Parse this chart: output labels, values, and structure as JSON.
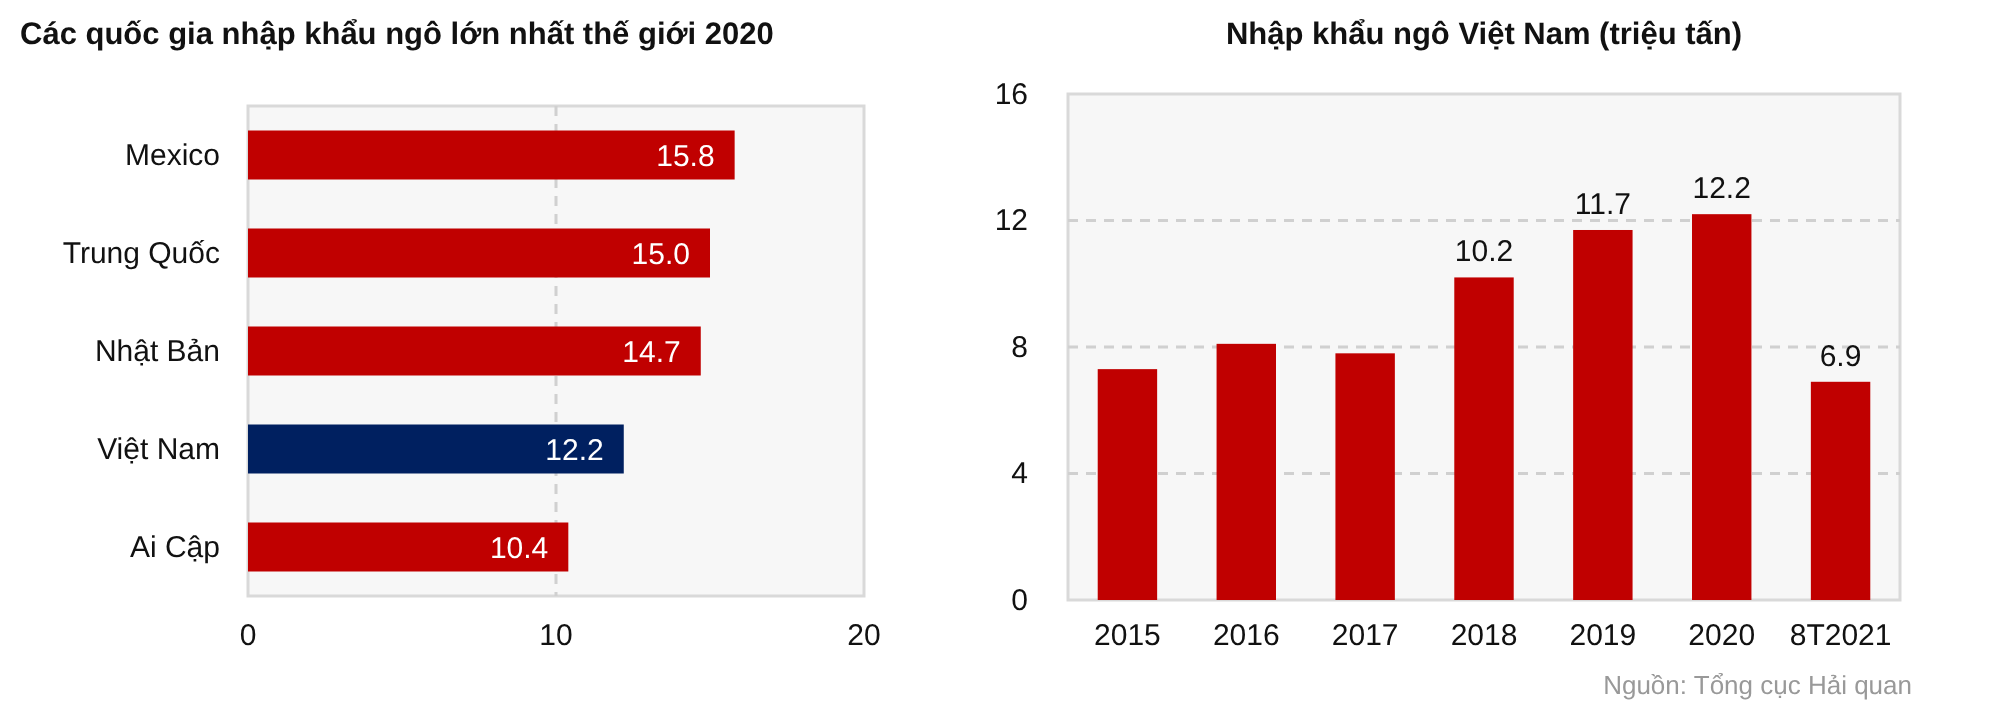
{
  "chart_data": [
    {
      "type": "bar",
      "title": "Các quốc gia nhập khẩu ngô lớn nhất thế giới 2020",
      "orientation": "horizontal",
      "categories": [
        "Mexico",
        "Trung Quốc",
        "Nhật Bản",
        "Việt Nam",
        "Ai Cập"
      ],
      "values": [
        15.8,
        15.0,
        14.7,
        12.2,
        10.4
      ],
      "colors": [
        "#c00000",
        "#c00000",
        "#c00000",
        "#002060",
        "#c00000"
      ],
      "value_labels": [
        "15.8",
        "15.0",
        "14.7",
        "12.2",
        "10.4"
      ],
      "xlim": [
        0,
        20
      ],
      "xticks": [
        0,
        10,
        20
      ],
      "grid": "x"
    },
    {
      "type": "bar",
      "title": "Nhập khẩu ngô Việt Nam (triệu tấn)",
      "categories": [
        "2015",
        "2016",
        "2017",
        "2018",
        "2019",
        "2020",
        "8T2021"
      ],
      "values": [
        7.3,
        8.1,
        7.8,
        10.2,
        11.7,
        12.2,
        6.9
      ],
      "color": "#c00000",
      "value_labels": [
        null,
        null,
        null,
        "10.2",
        "11.7",
        "12.2",
        "6.9"
      ],
      "ylim": [
        0,
        16
      ],
      "yticks": [
        0,
        4,
        8,
        12,
        16
      ],
      "grid": "y",
      "annotations": [
        "Nguồn: Tổng cục Hải quan"
      ]
    }
  ]
}
